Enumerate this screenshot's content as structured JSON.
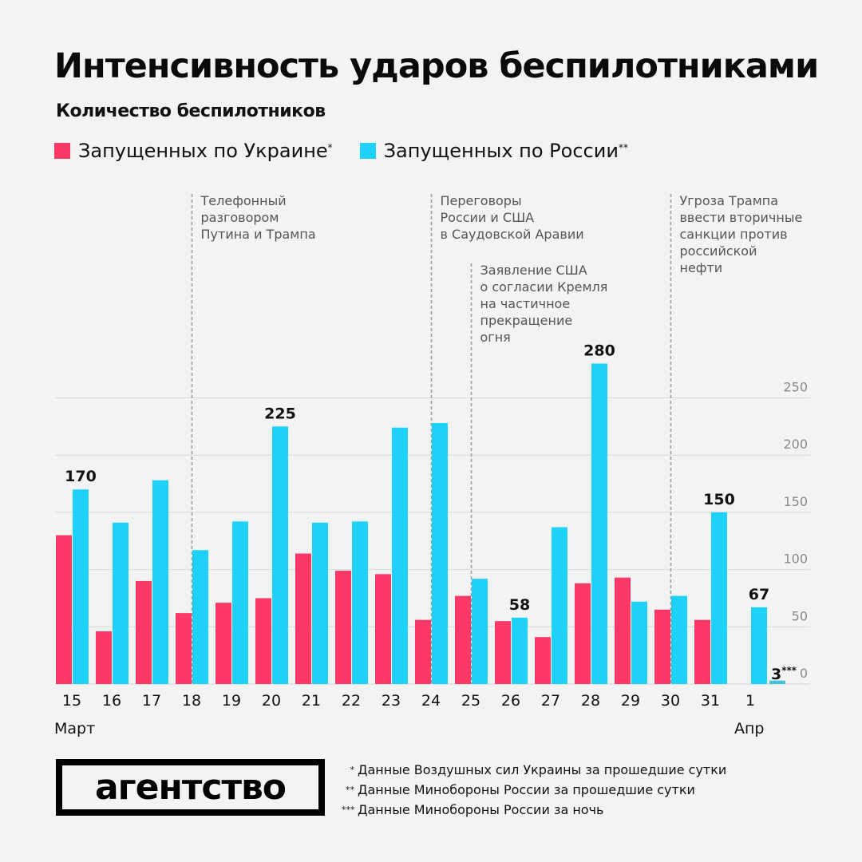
{
  "title": "Интенсивность ударов беспилотниками",
  "subtitle": "Количество беспилотников",
  "legend": [
    {
      "label": "Запущенных по Украине",
      "mark": "*",
      "color": "#fb3866"
    },
    {
      "label": "Запущенных по России",
      "mark": "**",
      "color": "#1dd2f6"
    }
  ],
  "chart_data": {
    "type": "bar",
    "title": "Интенсивность ударов беспилотниками",
    "ylabel": "Количество беспилотников",
    "xlabel": "",
    "ylim": [
      0,
      280
    ],
    "yticks": [
      0,
      50,
      100,
      150,
      200,
      250
    ],
    "grid": true,
    "legend_position": "top-left",
    "categories": [
      "15",
      "16",
      "17",
      "18",
      "19",
      "20",
      "21",
      "22",
      "23",
      "24",
      "25",
      "26",
      "27",
      "28",
      "29",
      "30",
      "31",
      "1"
    ],
    "month_labels": [
      {
        "label": "Март",
        "at": "15"
      },
      {
        "label": "Апр",
        "at": "1"
      }
    ],
    "series": [
      {
        "name": "Запущенных по Украине*",
        "color": "#fb3866",
        "values": [
          130,
          46,
          90,
          62,
          71,
          75,
          114,
          99,
          96,
          56,
          77,
          55,
          41,
          88,
          93,
          65,
          56,
          null
        ]
      },
      {
        "name": "Запущенных по России**",
        "color": "#1dd2f6",
        "values": [
          170,
          141,
          178,
          117,
          142,
          225,
          141,
          142,
          224,
          228,
          92,
          58,
          137,
          280,
          72,
          77,
          150,
          67
        ]
      }
    ],
    "data_labels": [
      {
        "series": 1,
        "category": "15",
        "text": "170"
      },
      {
        "series": 1,
        "category": "20",
        "text": "225"
      },
      {
        "series": 1,
        "category": "26",
        "text": "58"
      },
      {
        "series": 1,
        "category": "28",
        "text": "280"
      },
      {
        "series": 1,
        "category": "31",
        "text": "150"
      },
      {
        "series": 1,
        "category": "1",
        "text": "67"
      }
    ],
    "extra_bar": {
      "value": 3,
      "label": "3",
      "mark": "***",
      "color": "#3fc3d6"
    },
    "annotations": [
      {
        "after_category": "18",
        "lines": [
          "Телефонный",
          "разговором",
          "Путина и Трампа"
        ],
        "level": 0
      },
      {
        "after_category": "24",
        "lines": [
          "Переговоры",
          "России и США",
          "в Саудовской Аравии"
        ],
        "level": 0
      },
      {
        "after_category": "25",
        "lines": [
          "Заявление США",
          "о согласии Кремля",
          "на частичное",
          "прекращение",
          "огня"
        ],
        "level": 1
      },
      {
        "after_category": "30",
        "lines": [
          "Угроза Трампа",
          "ввести вторичные",
          "санкции против",
          "российской",
          "нефти"
        ],
        "level": 0
      }
    ]
  },
  "footer": {
    "logo": "агентство",
    "notes": [
      {
        "mark": "*",
        "text": "Данные Воздушных сил Украины за прошедшие сутки"
      },
      {
        "mark": "**",
        "text": "Данные Минобороны России за прошедшие сутки"
      },
      {
        "mark": "***",
        "text": "Данные Минобороны России за ночь"
      }
    ]
  }
}
